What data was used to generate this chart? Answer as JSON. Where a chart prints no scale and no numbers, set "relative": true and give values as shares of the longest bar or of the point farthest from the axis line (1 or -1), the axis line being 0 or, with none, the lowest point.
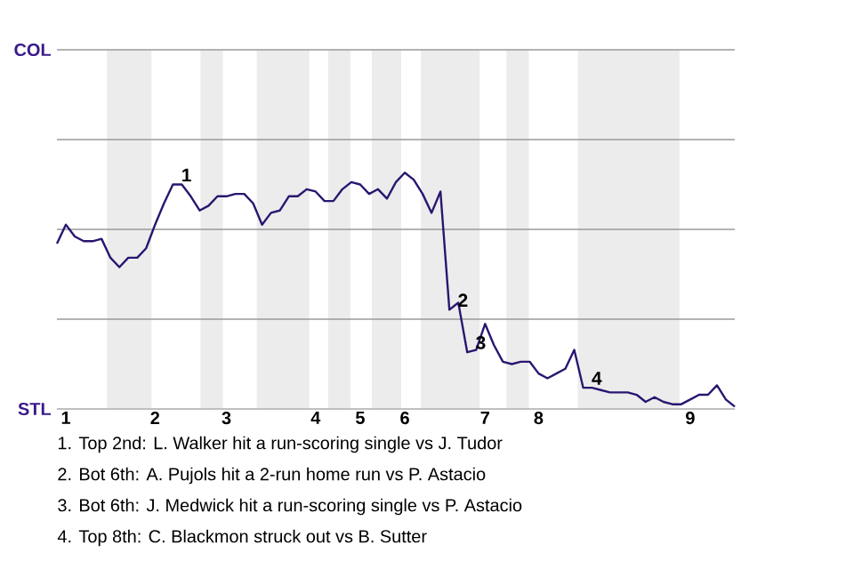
{
  "chart_data": {
    "type": "line",
    "relative": true,
    "categories": [
      null,
      "1",
      null,
      null,
      null,
      null,
      null,
      null,
      null,
      null,
      null,
      "2",
      null,
      null,
      null,
      null,
      null,
      null,
      null,
      "3",
      null,
      null,
      null,
      null,
      null,
      null,
      null,
      null,
      null,
      "4",
      null,
      null,
      null,
      null,
      "5",
      null,
      null,
      null,
      null,
      "6",
      null,
      null,
      null,
      null,
      null,
      null,
      null,
      null,
      "7",
      null,
      null,
      null,
      null,
      null,
      "8",
      null,
      null,
      null,
      null,
      null,
      null,
      null,
      null,
      null,
      null,
      null,
      null,
      null,
      null,
      null,
      null,
      "9",
      null,
      null,
      null,
      null,
      null
    ],
    "series": [
      {
        "color": "#2a1670",
        "values": [
          0.7,
          0.78,
          0.73,
          0.71,
          0.71,
          0.72,
          0.64,
          0.6,
          0.64,
          0.64,
          0.68,
          0.78,
          0.87,
          0.95,
          0.95,
          0.9,
          0.84,
          0.86,
          0.9,
          0.9,
          0.91,
          0.91,
          0.87,
          0.78,
          0.83,
          0.84,
          0.9,
          0.9,
          0.93,
          0.92,
          0.88,
          0.88,
          0.93,
          0.96,
          0.95,
          0.91,
          0.93,
          0.89,
          0.96,
          1,
          0.97,
          0.91,
          0.83,
          0.92,
          0.42,
          0.45,
          0.24,
          0.25,
          0.36,
          0.27,
          0.2,
          0.19,
          0.2,
          0.2,
          0.15,
          0.13,
          0.15,
          0.17,
          0.25,
          0.09,
          0.09,
          0.08,
          0.07,
          0.07,
          0.07,
          0.06,
          0.03,
          0.05,
          0.03,
          0.02,
          0.02,
          0.04,
          0.06,
          0.06,
          0.1,
          0.04,
          0.01
        ],
        "name": null
      }
    ],
    "ref_lines": [
      {
        "axis": "y",
        "value": 0.38,
        "color": "#9a9a9a"
      },
      {
        "axis": "y",
        "value": 0.76,
        "color": "#9a9a9a"
      },
      {
        "axis": "y",
        "value": 1.14,
        "color": "#9a9a9a"
      },
      {
        "axis": "y",
        "value": 1.52,
        "color": "#9a9a9a"
      }
    ],
    "annotations": [
      "COL",
      "STL",
      {
        "text": "1",
        "y": 0.95
      },
      {
        "text": "2",
        "y": 0.42
      },
      {
        "text": "3",
        "y": 0.24
      },
      {
        "text": "4",
        "y": 0.09
      },
      "1. Top 2nd: L. Walker hit a run-scoring single vs J. Tudor",
      "2. Bot 6th: A. Pujols hit a 2-run home run vs P. Astacio",
      "3. Bot 6th: J. Medwick hit a run-scoring single vs P. Astacio",
      "4. Top 8th: C. Blackmon struck out vs B. Sutter"
    ]
  }
}
